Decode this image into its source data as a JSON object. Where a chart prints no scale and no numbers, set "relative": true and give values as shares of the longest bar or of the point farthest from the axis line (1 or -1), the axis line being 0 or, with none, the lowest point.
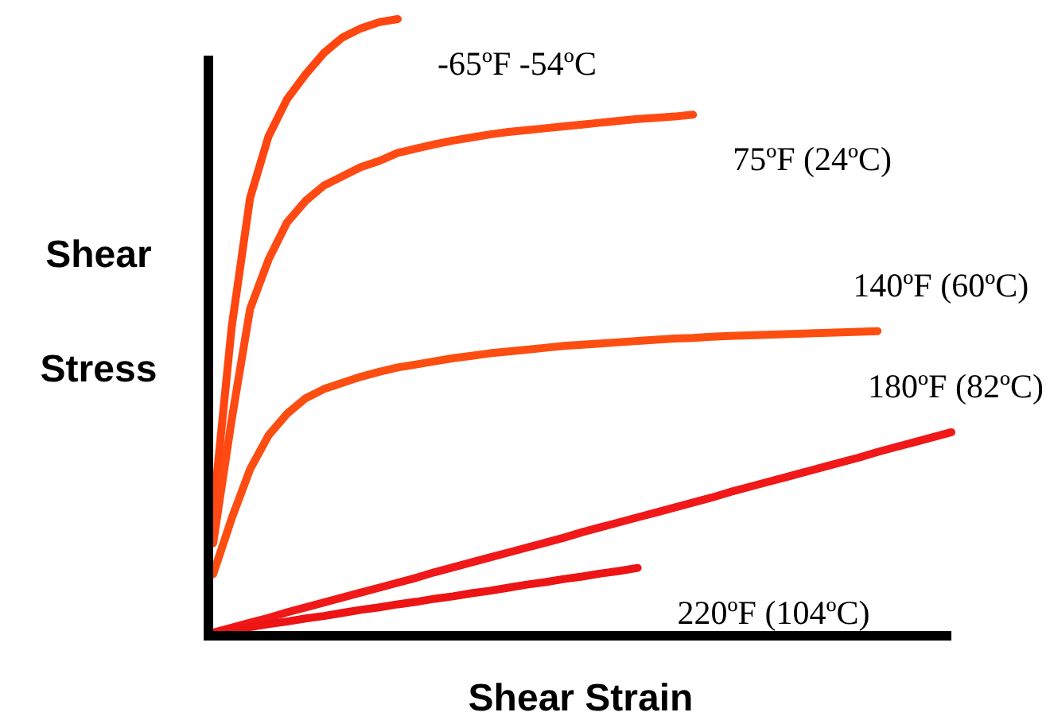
{
  "chart_data": {
    "type": "line",
    "relative": true,
    "xlabel": "Shear Strain",
    "ylabel": "Shear Stress",
    "marker": "none",
    "line_style": "solid",
    "categories": [
      null,
      null,
      null,
      null,
      null,
      null,
      null,
      null,
      null,
      null,
      null,
      null,
      null,
      null,
      null,
      null,
      null,
      null,
      null,
      null,
      null,
      null,
      null,
      null,
      null,
      null,
      null,
      null,
      null,
      null,
      null,
      null,
      null,
      null,
      null,
      null,
      null,
      null,
      null,
      null,
      null
    ],
    "series": [
      {
        "name": "-65ºF -54ºC",
        "color": "#ff4510",
        "values": [
          0.2,
          0.5,
          0.71,
          0.81,
          0.87,
          0.91,
          0.945,
          0.97,
          0.985,
          0.995,
          1.0,
          null,
          null,
          null,
          null,
          null,
          null,
          null,
          null,
          null,
          null,
          null,
          null,
          null,
          null,
          null,
          null,
          null,
          null,
          null,
          null,
          null,
          null,
          null,
          null,
          null,
          null,
          null,
          null,
          null,
          null
        ]
      },
      {
        "name": "75ºF (24ºC)",
        "color": "#ff4a14",
        "values": [
          0.15,
          0.35,
          0.53,
          0.61,
          0.67,
          0.705,
          0.73,
          0.745,
          0.76,
          0.77,
          0.783,
          0.79,
          0.797,
          0.803,
          0.808,
          0.813,
          0.817,
          0.82,
          0.823,
          0.826,
          0.829,
          0.832,
          0.835,
          0.838,
          0.84,
          0.842,
          0.845,
          null,
          null,
          null,
          null,
          null,
          null,
          null,
          null,
          null,
          null,
          null,
          null,
          null,
          null
        ]
      },
      {
        "name": "140ºF (60ºC)",
        "color": "#fc4e10",
        "values": [
          0.1,
          0.19,
          0.27,
          0.325,
          0.36,
          0.385,
          0.4,
          0.41,
          0.42,
          0.428,
          0.435,
          0.44,
          0.445,
          0.45,
          0.454,
          0.458,
          0.461,
          0.464,
          0.467,
          0.47,
          0.472,
          0.474,
          0.476,
          0.478,
          0.48,
          0.482,
          0.483,
          0.485,
          0.486,
          0.487,
          0.488,
          0.489,
          0.49,
          0.491,
          0.492,
          0.493,
          0.494,
          null,
          null,
          null,
          null
        ]
      },
      {
        "name": "180ºF (82ºC)",
        "color": "#f01818",
        "values": [
          0.005,
          0.013,
          0.021,
          0.029,
          0.038,
          0.046,
          0.054,
          0.062,
          0.07,
          0.078,
          0.086,
          0.094,
          0.103,
          0.111,
          0.119,
          0.127,
          0.135,
          0.143,
          0.151,
          0.159,
          0.168,
          0.176,
          0.184,
          0.192,
          0.2,
          0.208,
          0.216,
          0.224,
          0.233,
          0.241,
          0.249,
          0.257,
          0.265,
          0.273,
          0.281,
          0.289,
          0.298,
          0.306,
          0.314,
          0.322,
          0.33
        ]
      },
      {
        "name": "220ºF (104ºC)",
        "color": "#ec1414",
        "values": [
          0.005,
          0.01,
          0.014,
          0.019,
          0.023,
          0.028,
          0.032,
          0.037,
          0.042,
          0.046,
          0.051,
          0.055,
          0.06,
          0.064,
          0.069,
          0.073,
          0.078,
          0.083,
          0.087,
          0.092,
          0.096,
          0.101,
          0.105,
          0.11,
          null,
          null,
          null,
          null,
          null,
          null,
          null,
          null,
          null,
          null,
          null,
          null,
          null,
          null,
          null,
          null,
          null
        ]
      }
    ]
  }
}
